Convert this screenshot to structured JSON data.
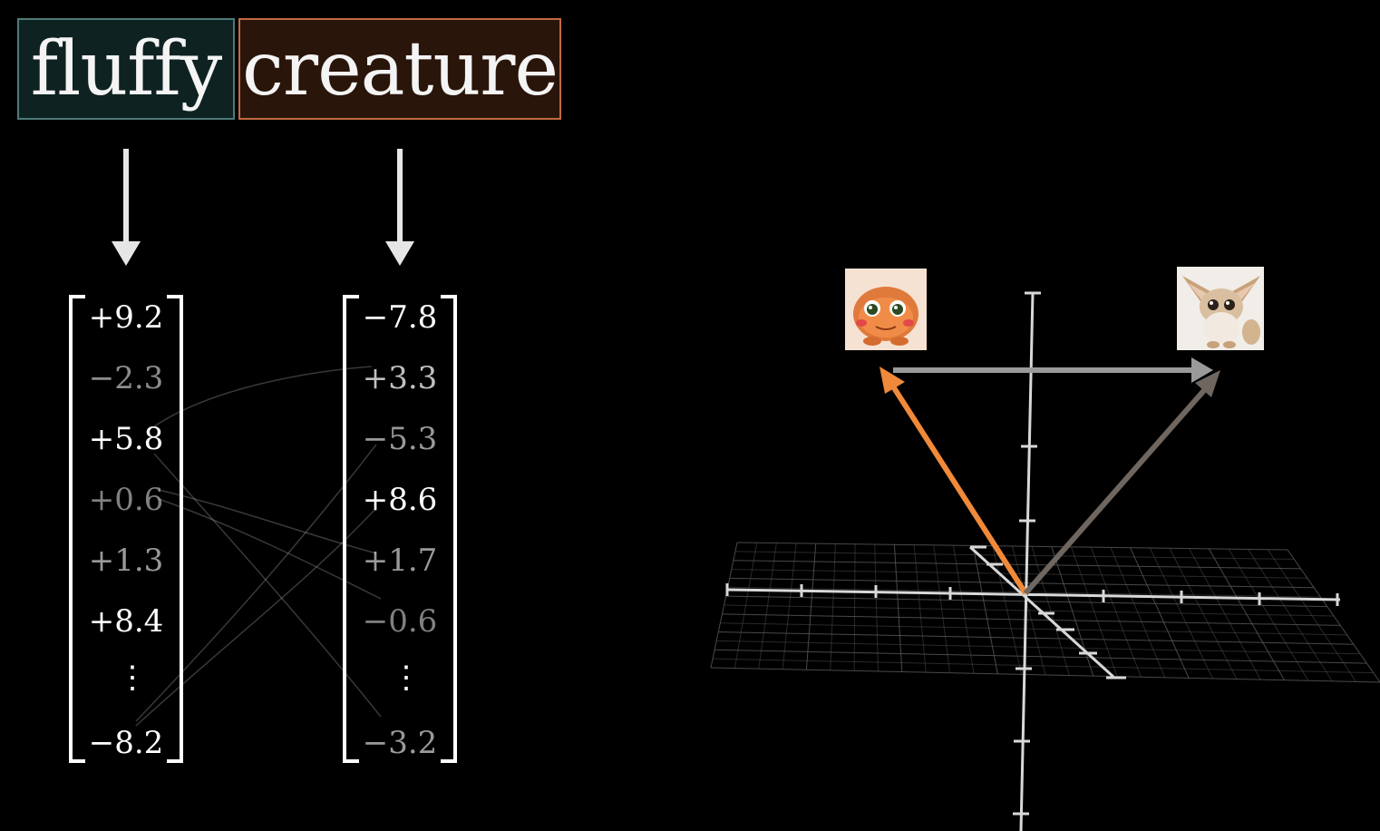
{
  "tokens": {
    "fluffy": "fluffy",
    "creature": "creature"
  },
  "vectors": {
    "fluffy": {
      "values": [
        "+9.2",
        "−2.3",
        "+5.8",
        "+0.6",
        "+1.3",
        "+8.4",
        "−8.2"
      ],
      "ellipsis": "⋮"
    },
    "creature": {
      "values": [
        "−7.8",
        "+3.3",
        "−5.3",
        "+8.6",
        "+1.7",
        "−0.6",
        "−3.2"
      ],
      "ellipsis": "⋮"
    }
  },
  "colors": {
    "fluffy_token_bg": "#0f2222",
    "fluffy_token_border": "#4e7a78",
    "creature_token_bg": "#2a150a",
    "creature_token_border": "#c26a44",
    "orange_vector": "#f08a3a",
    "brown_vector": "#6f6660",
    "difference_vector": "#9a9a9a"
  },
  "images": {
    "left": "orange round creature illustration",
    "right": "fluffy big-eared creature illustration"
  }
}
